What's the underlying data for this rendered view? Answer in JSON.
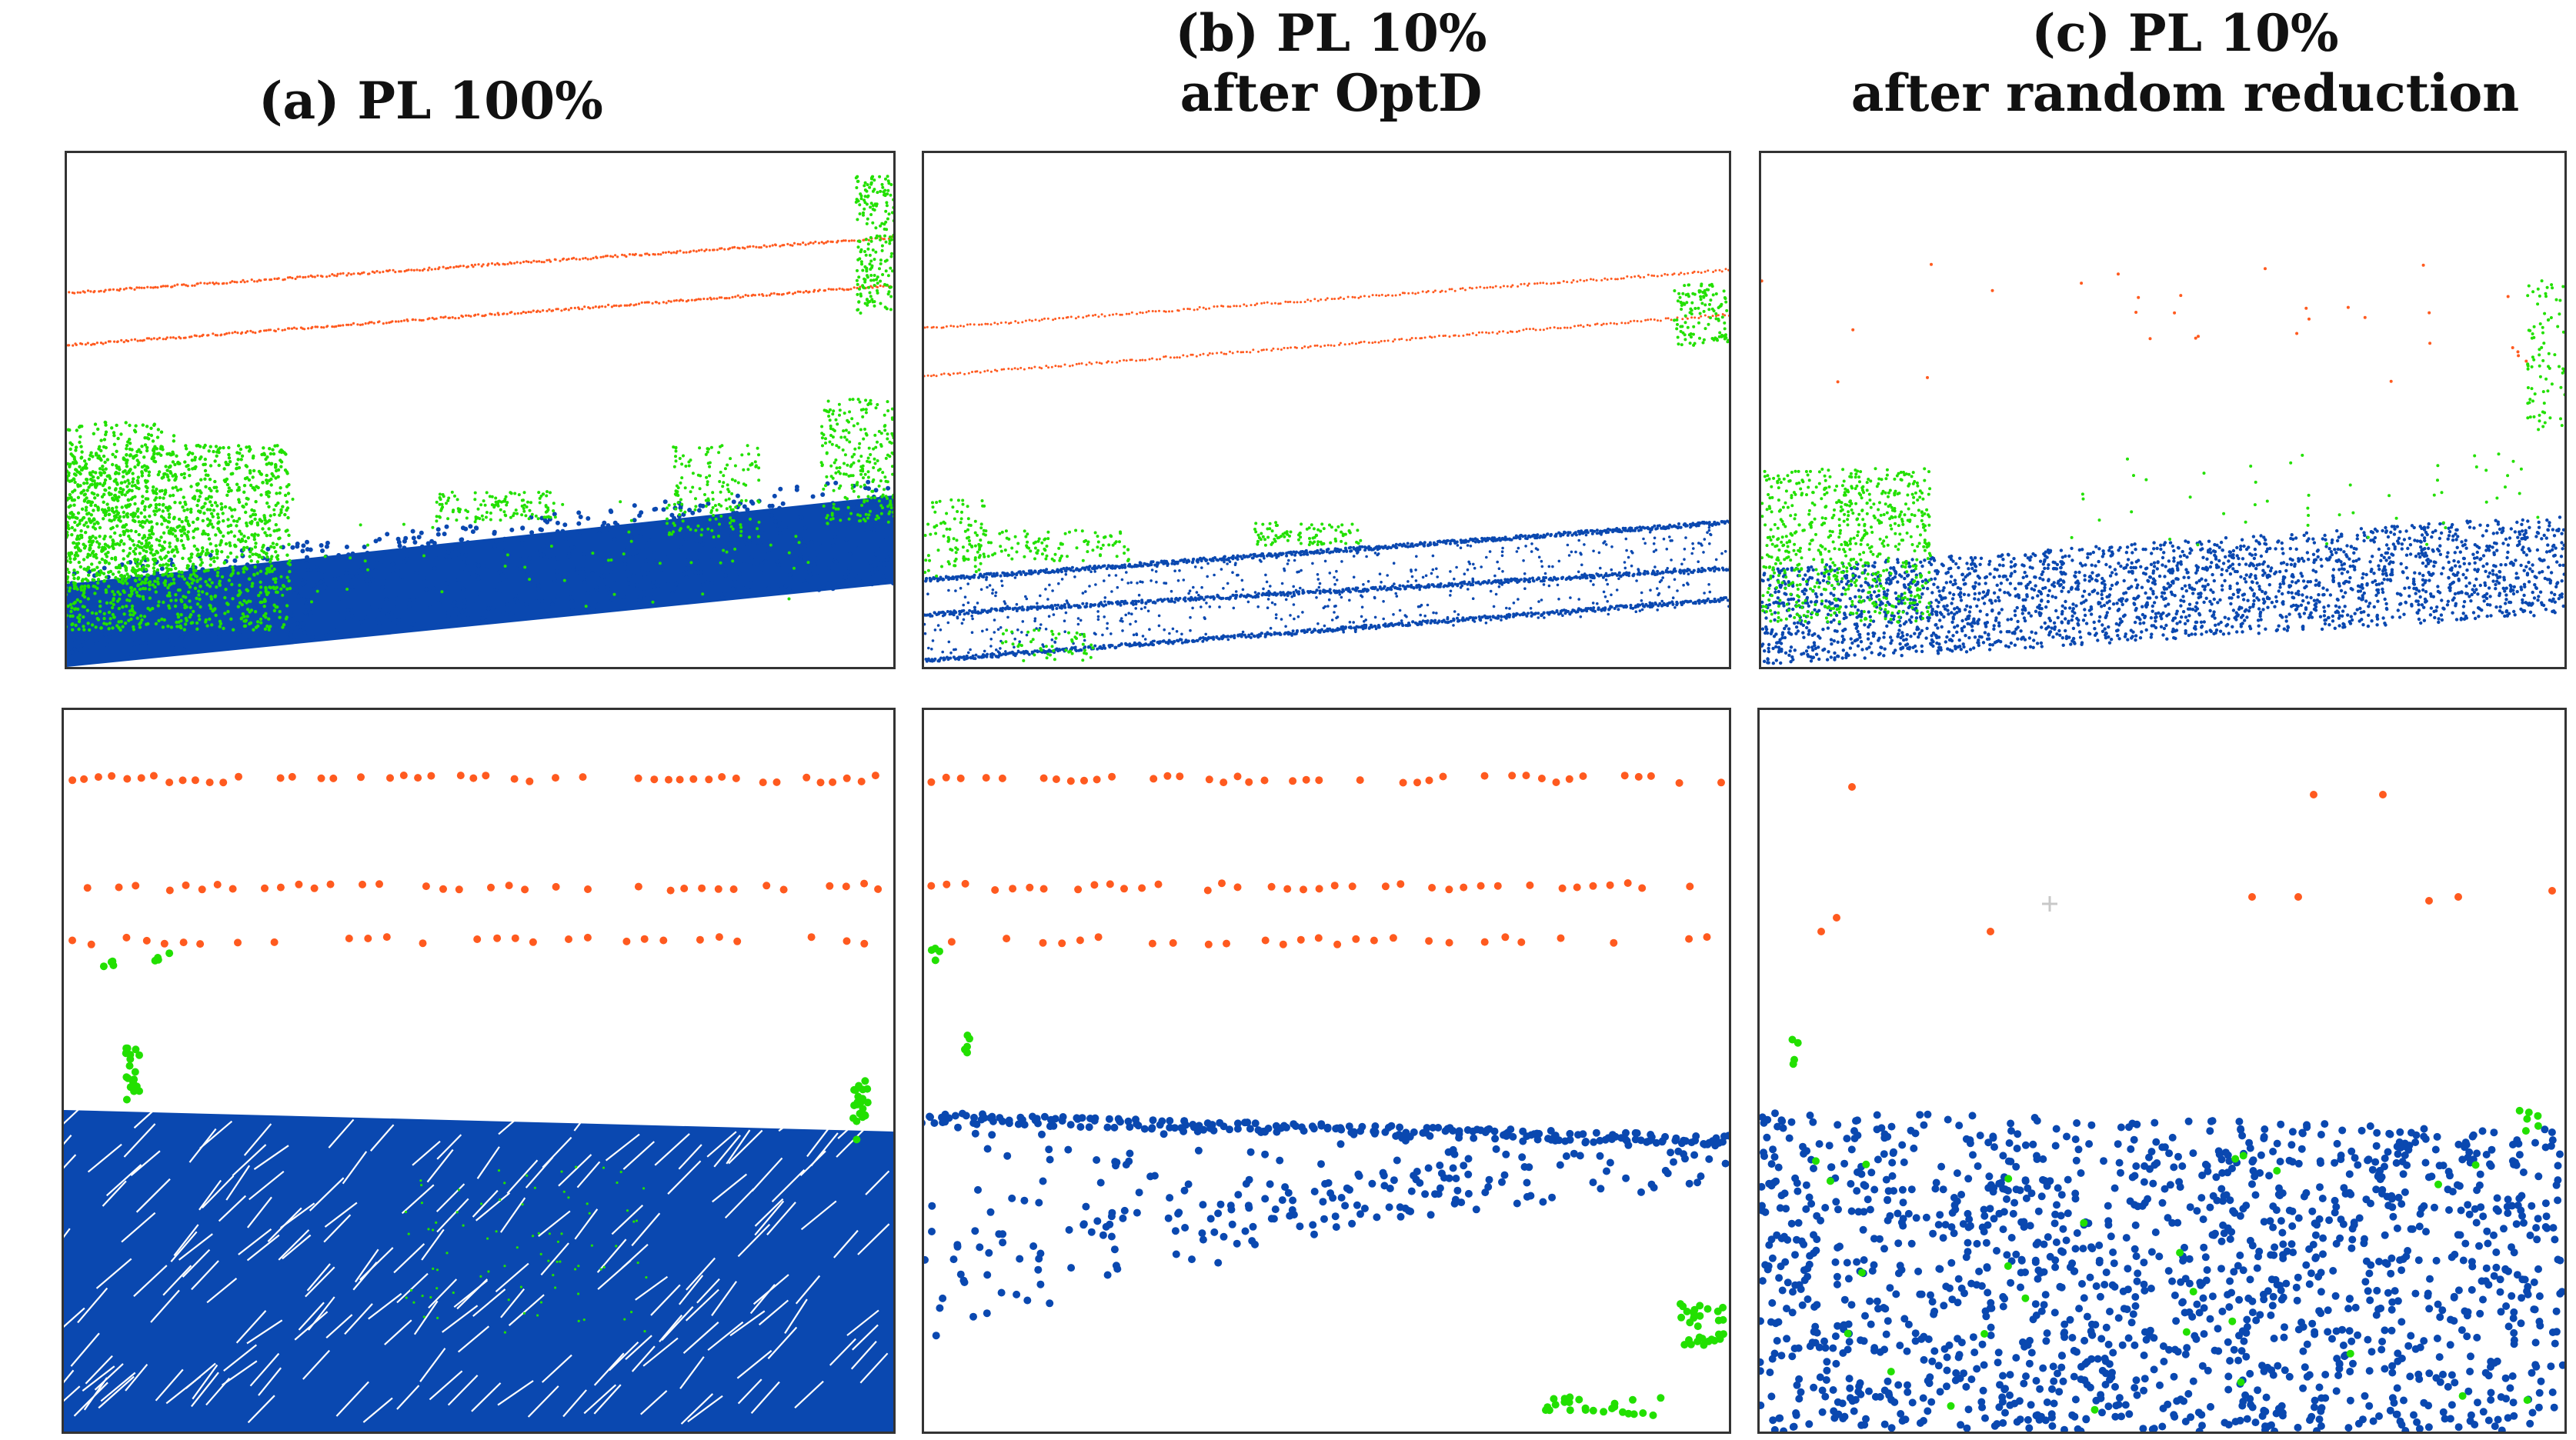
{
  "columns": [
    {
      "title_line1": "(a) PL 100%",
      "title_line2": ""
    },
    {
      "title_line1": "(b) PL 10%",
      "title_line2": "after OptD"
    },
    {
      "title_line1": "(c) PL 10%",
      "title_line2": "after random reduction"
    }
  ],
  "colors": {
    "wire": "#ff5a1f",
    "vegetation": "#22e000",
    "ground": "#0a48b0",
    "border": "#333333",
    "marker": "#c8c8c8"
  }
}
